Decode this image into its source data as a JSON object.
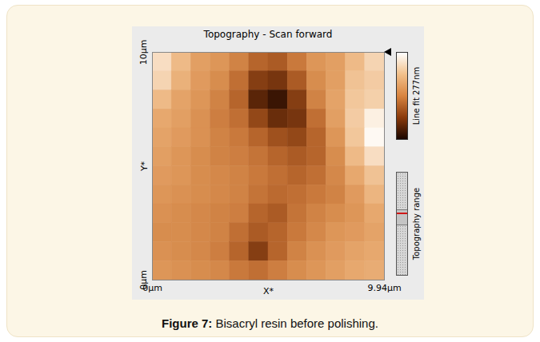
{
  "chart_data": {
    "type": "heatmap",
    "title": "Topography - Scan forward",
    "x_label": "X*",
    "y_label": "Y*",
    "xlim": [
      0,
      9.94
    ],
    "ylim": [
      0,
      10
    ],
    "xticks": [
      {
        "value": 0,
        "label": "0µm"
      },
      {
        "value": 9.94,
        "label": "9.94µm"
      }
    ],
    "yticks": [
      {
        "value": 0,
        "label": "0µm"
      },
      {
        "value": 10,
        "label": "10µm"
      }
    ],
    "cells": [
      [
        240,
        200,
        170,
        160,
        140,
        110,
        100,
        130,
        160,
        170,
        200,
        230
      ],
      [
        230,
        190,
        165,
        150,
        120,
        70,
        60,
        100,
        150,
        170,
        210,
        220
      ],
      [
        200,
        175,
        160,
        140,
        110,
        40,
        20,
        70,
        140,
        175,
        215,
        225
      ],
      [
        180,
        170,
        155,
        135,
        120,
        80,
        50,
        60,
        120,
        170,
        220,
        260
      ],
      [
        175,
        165,
        155,
        140,
        130,
        110,
        90,
        80,
        110,
        160,
        215,
        270
      ],
      [
        170,
        160,
        150,
        140,
        135,
        125,
        110,
        100,
        110,
        150,
        200,
        240
      ],
      [
        165,
        160,
        150,
        145,
        140,
        130,
        120,
        110,
        120,
        145,
        180,
        210
      ],
      [
        160,
        155,
        150,
        145,
        140,
        125,
        115,
        120,
        130,
        140,
        165,
        195
      ],
      [
        155,
        150,
        145,
        140,
        135,
        110,
        100,
        125,
        140,
        150,
        160,
        180
      ],
      [
        150,
        150,
        145,
        140,
        120,
        100,
        110,
        130,
        145,
        160,
        165,
        175
      ],
      [
        155,
        150,
        145,
        135,
        110,
        70,
        110,
        140,
        155,
        165,
        175,
        180
      ],
      [
        160,
        155,
        150,
        145,
        130,
        120,
        135,
        150,
        160,
        170,
        180,
        185
      ]
    ],
    "colorbar": {
      "label": "Line fit 277nm",
      "range": [
        0,
        277
      ],
      "colors": [
        "#1a0600",
        "#8a3a0c",
        "#d88440",
        "#f2c08a",
        "#ffffff"
      ]
    },
    "range_label": "Topography range",
    "caption_label": "Figure 7:",
    "caption": "Bisacryl resin before polishing."
  }
}
